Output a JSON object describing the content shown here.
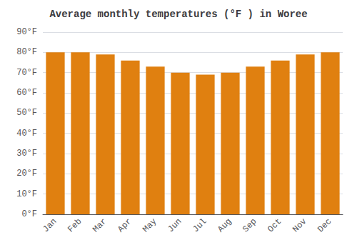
{
  "chart_data": {
    "type": "bar",
    "title": "Average monthly temperatures (°F ) in Woree",
    "categories": [
      "Jan",
      "Feb",
      "Mar",
      "Apr",
      "May",
      "Jun",
      "Jul",
      "Aug",
      "Sep",
      "Oct",
      "Nov",
      "Dec"
    ],
    "values": [
      80,
      80,
      79,
      76,
      73,
      70,
      69,
      70,
      73,
      76,
      79,
      80
    ],
    "color": "#E08010",
    "ylim": [
      0,
      90
    ],
    "yticks": [
      {
        "value": 0,
        "label": "0°F"
      },
      {
        "value": 10,
        "label": "10°F"
      },
      {
        "value": 20,
        "label": "20°F"
      },
      {
        "value": 30,
        "label": "30°F"
      },
      {
        "value": 40,
        "label": "40°F"
      },
      {
        "value": 50,
        "label": "50°F"
      },
      {
        "value": 60,
        "label": "60°F"
      },
      {
        "value": 70,
        "label": "70°F"
      },
      {
        "value": 80,
        "label": "80°F"
      },
      {
        "value": 90,
        "label": "90°F"
      }
    ],
    "grid": true
  }
}
